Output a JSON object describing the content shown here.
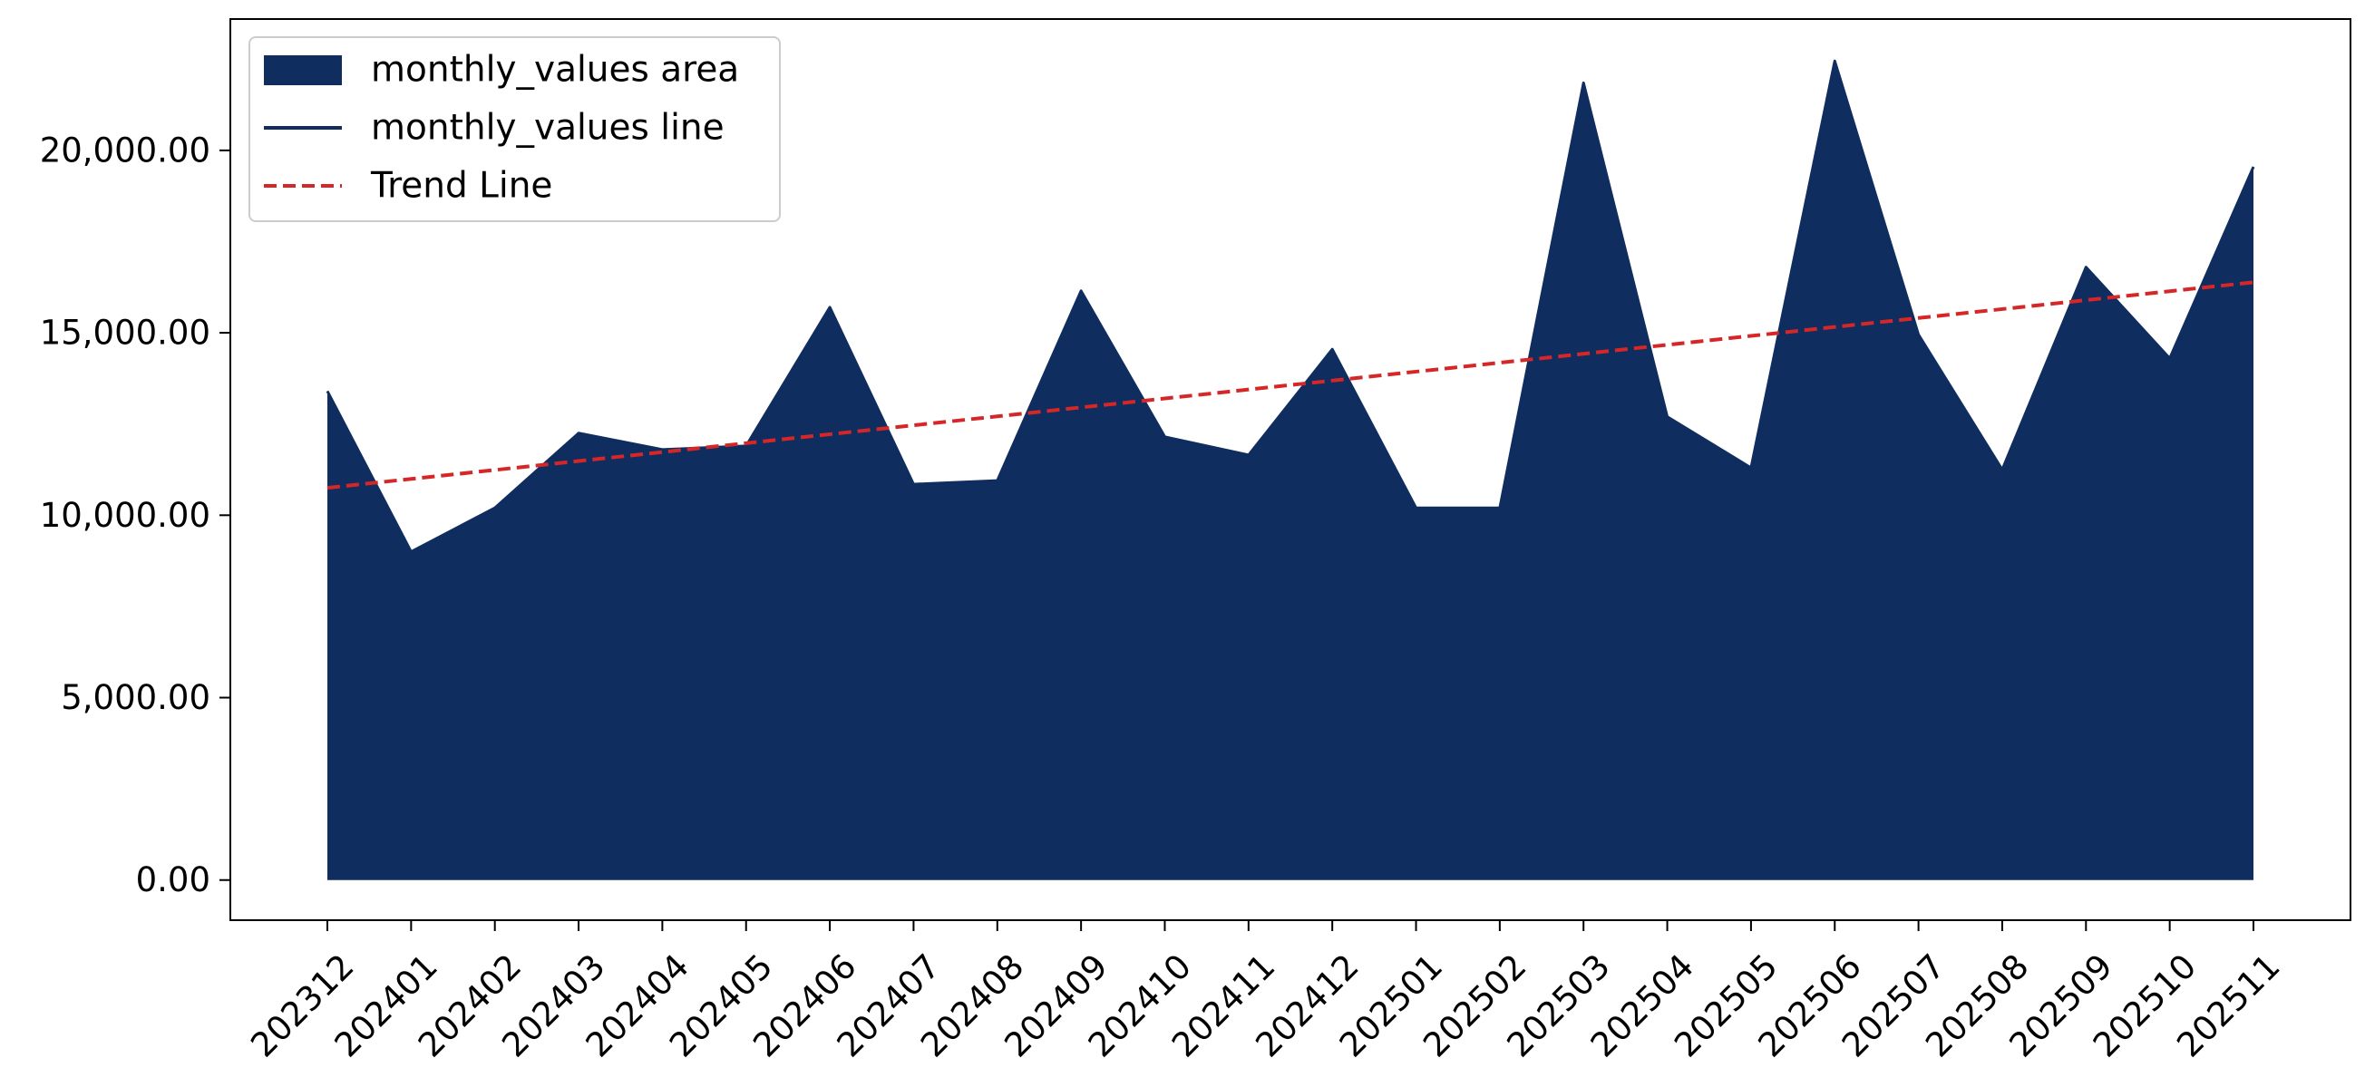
{
  "chart_data": {
    "type": "area",
    "title": "",
    "xlabel": "",
    "ylabel": "",
    "categories": [
      "202312",
      "202401",
      "202402",
      "202403",
      "202404",
      "202405",
      "202406",
      "202407",
      "202408",
      "202409",
      "202410",
      "202411",
      "202412",
      "202501",
      "202502",
      "202503",
      "202504",
      "202505",
      "202506",
      "202507",
      "202508",
      "202509",
      "202510",
      "202511"
    ],
    "series": [
      {
        "name": "monthly_values area",
        "kind": "area",
        "color": "#0f2d5e",
        "values": [
          13400,
          9000,
          10200,
          12250,
          11800,
          11900,
          15700,
          10850,
          10950,
          16150,
          12150,
          11650,
          14550,
          10200,
          10200,
          21850,
          12700,
          11300,
          22450,
          14950,
          11250,
          16800,
          14300,
          19550
        ]
      },
      {
        "name": "monthly_values line",
        "kind": "line",
        "color": "#0f2d5e",
        "values": [
          13400,
          9000,
          10200,
          12250,
          11800,
          11900,
          15700,
          10850,
          10950,
          16150,
          12150,
          11650,
          14550,
          10200,
          10200,
          21850,
          12700,
          11300,
          22450,
          14950,
          11250,
          16800,
          14300,
          19550
        ]
      },
      {
        "name": "Trend Line",
        "kind": "dashed-line",
        "color": "#d62728",
        "values": [
          10750,
          10995,
          11240,
          11485,
          11730,
          11975,
          12220,
          12465,
          12710,
          12955,
          13200,
          13445,
          13690,
          13935,
          14180,
          14425,
          14670,
          14915,
          15160,
          15405,
          15650,
          15895,
          16140,
          16385
        ]
      }
    ],
    "ylim": [
      -1100,
      23600
    ],
    "yticks": [
      0,
      5000,
      10000,
      15000,
      20000
    ],
    "ytick_labels": [
      "0.00",
      "5,000.00",
      "10,000.00",
      "15,000.00",
      "20,000.00"
    ],
    "grid": false,
    "legend_position": "top-left",
    "legend": [
      "monthly_values area",
      "monthly_values line",
      "Trend Line"
    ]
  }
}
